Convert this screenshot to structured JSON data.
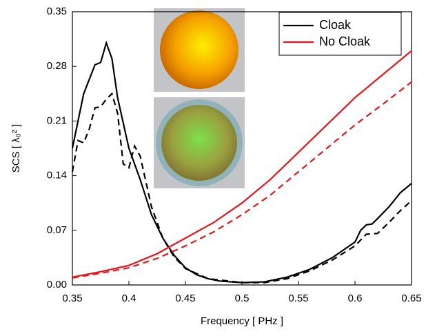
{
  "chart_data": {
    "type": "line",
    "xlabel": "Frequency [ PHz ]",
    "ylabel": "SCS [ λ₀² ]",
    "xlim": [
      0.35,
      0.65
    ],
    "xticks": [
      0.35,
      0.4,
      0.45,
      0.5,
      0.55,
      0.6,
      0.65
    ],
    "ylim": [
      0,
      0.35
    ],
    "yticks": [
      {
        "value": 0,
        "label": "0.00"
      },
      0.07,
      0.14,
      0.21,
      0.28,
      0.35
    ],
    "legend": "upper right",
    "series": [
      {
        "name": "Cloak",
        "color": "#000000",
        "dash": false,
        "x": [
          0.35,
          0.36,
          0.37,
          0.375,
          0.38,
          0.385,
          0.39,
          0.4,
          0.41,
          0.42,
          0.43,
          0.44,
          0.45,
          0.46,
          0.47,
          0.48,
          0.5,
          0.52,
          0.54,
          0.56,
          0.58,
          0.6,
          0.605,
          0.61,
          0.615,
          0.62,
          0.63,
          0.64,
          0.65
        ],
        "values": [
          0.175,
          0.245,
          0.282,
          0.285,
          0.31,
          0.29,
          0.24,
          0.175,
          0.135,
          0.09,
          0.06,
          0.038,
          0.022,
          0.013,
          0.008,
          0.005,
          0.003,
          0.004,
          0.01,
          0.02,
          0.035,
          0.055,
          0.07,
          0.077,
          0.078,
          0.085,
          0.1,
          0.118,
          0.13
        ]
      },
      {
        "color": "#000000",
        "dash": true,
        "x": [
          0.35,
          0.355,
          0.36,
          0.365,
          0.37,
          0.375,
          0.38,
          0.385,
          0.39,
          0.395,
          0.4,
          0.405,
          0.41,
          0.42,
          0.43,
          0.44,
          0.45,
          0.47,
          0.5,
          0.52,
          0.54,
          0.56,
          0.58,
          0.6,
          0.61,
          0.62,
          0.63,
          0.64,
          0.65
        ],
        "values": [
          0.145,
          0.185,
          0.182,
          0.2,
          0.227,
          0.228,
          0.238,
          0.245,
          0.22,
          0.155,
          0.15,
          0.178,
          0.165,
          0.1,
          0.06,
          0.036,
          0.021,
          0.008,
          0.003,
          0.003,
          0.008,
          0.018,
          0.032,
          0.05,
          0.065,
          0.066,
          0.08,
          0.095,
          0.108
        ]
      },
      {
        "name": "No Cloak",
        "color": "#e8141b",
        "dash": false,
        "x": [
          0.35,
          0.375,
          0.4,
          0.425,
          0.45,
          0.475,
          0.5,
          0.525,
          0.55,
          0.575,
          0.6,
          0.625,
          0.65
        ],
        "values": [
          0.01,
          0.017,
          0.025,
          0.04,
          0.06,
          0.08,
          0.105,
          0.135,
          0.17,
          0.205,
          0.24,
          0.27,
          0.3
        ]
      },
      {
        "color": "#e8141b",
        "dash": true,
        "x": [
          0.35,
          0.375,
          0.4,
          0.425,
          0.45,
          0.475,
          0.5,
          0.525,
          0.55,
          0.575,
          0.6,
          0.625,
          0.65
        ],
        "values": [
          0.009,
          0.015,
          0.022,
          0.034,
          0.05,
          0.068,
          0.09,
          0.115,
          0.145,
          0.175,
          0.205,
          0.232,
          0.26
        ]
      }
    ]
  }
}
